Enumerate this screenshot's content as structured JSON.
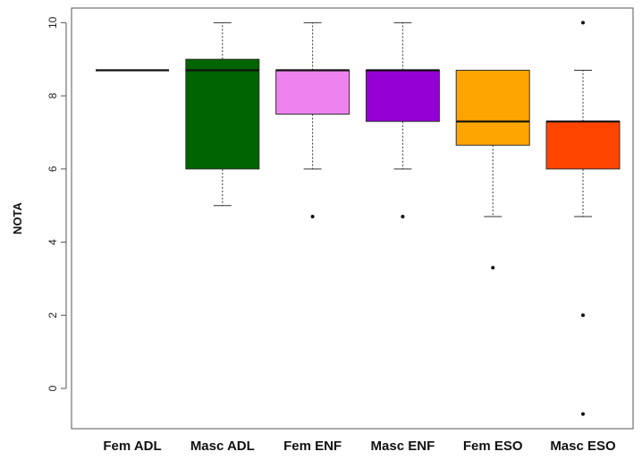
{
  "chart_data": {
    "type": "boxplot",
    "title": "",
    "xlabel": "",
    "ylabel": "NOTA",
    "ylim": [
      -1.1,
      10.4
    ],
    "yticks": [
      0,
      2,
      4,
      6,
      8,
      10
    ],
    "grid": false,
    "categories": [
      "Fem ADL",
      "Masc ADL",
      "Fem ENF",
      "Masc ENF",
      "Fem ESO",
      "Masc ESO"
    ],
    "boxes": [
      {
        "category": "Fem ADL",
        "color": "#000000",
        "whisker_low": 8.7,
        "q1": 8.7,
        "median": 8.7,
        "q3": 8.7,
        "whisker_high": 8.7,
        "outliers": []
      },
      {
        "category": "Masc ADL",
        "color": "#006400",
        "whisker_low": 5.0,
        "q1": 6.0,
        "median": 8.7,
        "q3": 9.0,
        "whisker_high": 10.0,
        "outliers": []
      },
      {
        "category": "Fem ENF",
        "color": "#EE82EE",
        "whisker_low": 6.0,
        "q1": 7.5,
        "median": 8.7,
        "q3": 8.7,
        "whisker_high": 10.0,
        "outliers": [
          4.7
        ]
      },
      {
        "category": "Masc ENF",
        "color": "#9400D3",
        "whisker_low": 6.0,
        "q1": 7.3,
        "median": 8.7,
        "q3": 8.7,
        "whisker_high": 10.0,
        "outliers": [
          4.7
        ]
      },
      {
        "category": "Fem ESO",
        "color": "#FFA500",
        "whisker_low": 4.7,
        "q1": 6.65,
        "median": 7.3,
        "q3": 8.7,
        "whisker_high": 8.7,
        "outliers": [
          3.3
        ]
      },
      {
        "category": "Masc ESO",
        "color": "#FF4500",
        "whisker_low": 4.7,
        "q1": 6.0,
        "median": 7.3,
        "q3": 7.3,
        "whisker_high": 8.7,
        "outliers": [
          2.0,
          -0.7,
          10.0
        ]
      }
    ]
  }
}
